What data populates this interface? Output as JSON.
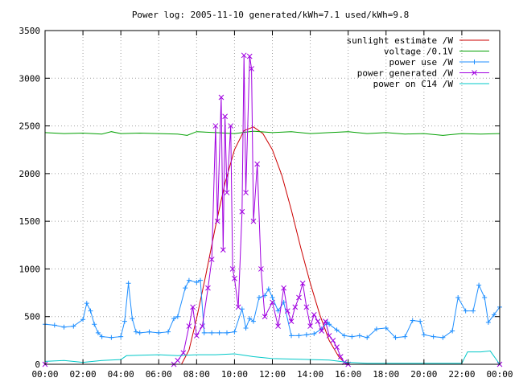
{
  "chart_data": {
    "type": "line",
    "title": "Power log: 2005-11-10 generated/kWh=7.1 used/kWh=9.8",
    "xlabel": "",
    "ylabel": "",
    "x_unit": "hours",
    "xlim": [
      0,
      24
    ],
    "ylim": [
      0,
      3500
    ],
    "x_ticks": [
      "00:00",
      "02:00",
      "04:00",
      "06:00",
      "08:00",
      "10:00",
      "12:00",
      "14:00",
      "16:00",
      "18:00",
      "20:00",
      "22:00",
      "00:00"
    ],
    "y_ticks": [
      "0",
      "500",
      "1000",
      "1500",
      "2000",
      "2500",
      "3000",
      "3500"
    ],
    "grid": true,
    "legend_position": "top-right",
    "series": [
      {
        "name": "sunlight estimate /W",
        "color": "#cc0000",
        "marker": "none",
        "points": [
          [
            7.2,
            0
          ],
          [
            7.6,
            150
          ],
          [
            8.0,
            480
          ],
          [
            8.5,
            950
          ],
          [
            9.0,
            1450
          ],
          [
            9.5,
            1900
          ],
          [
            10.0,
            2250
          ],
          [
            10.5,
            2450
          ],
          [
            11.0,
            2490
          ],
          [
            11.5,
            2420
          ],
          [
            12.0,
            2250
          ],
          [
            12.5,
            1980
          ],
          [
            13.0,
            1620
          ],
          [
            13.5,
            1220
          ],
          [
            14.0,
            850
          ],
          [
            14.5,
            520
          ],
          [
            15.0,
            250
          ],
          [
            15.5,
            80
          ],
          [
            15.9,
            0
          ]
        ]
      },
      {
        "name": "voltage /0.1V",
        "color": "#00a000",
        "marker": "none",
        "points": [
          [
            0,
            2430
          ],
          [
            1,
            2420
          ],
          [
            2,
            2425
          ],
          [
            3,
            2415
          ],
          [
            3.5,
            2440
          ],
          [
            4,
            2420
          ],
          [
            5,
            2425
          ],
          [
            6,
            2420
          ],
          [
            7,
            2415
          ],
          [
            7.5,
            2400
          ],
          [
            8,
            2440
          ],
          [
            9,
            2430
          ],
          [
            10,
            2420
          ],
          [
            11,
            2445
          ],
          [
            12,
            2430
          ],
          [
            13,
            2440
          ],
          [
            14,
            2420
          ],
          [
            15,
            2430
          ],
          [
            16,
            2440
          ],
          [
            17,
            2420
          ],
          [
            18,
            2430
          ],
          [
            19,
            2415
          ],
          [
            20,
            2420
          ],
          [
            21,
            2400
          ],
          [
            22,
            2420
          ],
          [
            23,
            2415
          ],
          [
            24,
            2420
          ]
        ]
      },
      {
        "name": "power use /W",
        "color": "#1f8fff",
        "marker": "plus",
        "points": [
          [
            0,
            420
          ],
          [
            0.5,
            410
          ],
          [
            1,
            390
          ],
          [
            1.5,
            400
          ],
          [
            2,
            470
          ],
          [
            2.2,
            640
          ],
          [
            2.4,
            560
          ],
          [
            2.6,
            420
          ],
          [
            2.8,
            330
          ],
          [
            3,
            290
          ],
          [
            3.5,
            280
          ],
          [
            4,
            290
          ],
          [
            4.2,
            450
          ],
          [
            4.4,
            850
          ],
          [
            4.6,
            480
          ],
          [
            4.8,
            340
          ],
          [
            5,
            330
          ],
          [
            5.5,
            340
          ],
          [
            6,
            330
          ],
          [
            6.5,
            340
          ],
          [
            6.8,
            480
          ],
          [
            7,
            500
          ],
          [
            7.4,
            800
          ],
          [
            7.6,
            880
          ],
          [
            8,
            860
          ],
          [
            8.2,
            880
          ],
          [
            8.4,
            330
          ],
          [
            8.8,
            330
          ],
          [
            9.2,
            330
          ],
          [
            9.6,
            330
          ],
          [
            10,
            340
          ],
          [
            10.4,
            580
          ],
          [
            10.6,
            380
          ],
          [
            10.8,
            480
          ],
          [
            11,
            450
          ],
          [
            11.3,
            700
          ],
          [
            11.6,
            720
          ],
          [
            11.8,
            790
          ],
          [
            12,
            700
          ],
          [
            12.3,
            560
          ],
          [
            12.6,
            650
          ],
          [
            13,
            300
          ],
          [
            13.4,
            300
          ],
          [
            13.8,
            310
          ],
          [
            14.2,
            320
          ],
          [
            14.6,
            370
          ],
          [
            14.9,
            440
          ],
          [
            15,
            420
          ],
          [
            15.4,
            360
          ],
          [
            15.8,
            300
          ],
          [
            16.2,
            290
          ],
          [
            16.6,
            300
          ],
          [
            17,
            280
          ],
          [
            17.5,
            370
          ],
          [
            18,
            380
          ],
          [
            18.5,
            280
          ],
          [
            19,
            290
          ],
          [
            19.4,
            460
          ],
          [
            19.8,
            450
          ],
          [
            20,
            310
          ],
          [
            20.5,
            290
          ],
          [
            21,
            280
          ],
          [
            21.5,
            350
          ],
          [
            21.8,
            700
          ],
          [
            22.2,
            560
          ],
          [
            22.6,
            560
          ],
          [
            22.9,
            830
          ],
          [
            23.2,
            700
          ],
          [
            23.4,
            440
          ],
          [
            23.7,
            520
          ],
          [
            24,
            600
          ]
        ]
      },
      {
        "name": "power generated /W",
        "color": "#a000e0",
        "marker": "cross",
        "points": [
          [
            0,
            0
          ],
          [
            6.8,
            0
          ],
          [
            7.0,
            40
          ],
          [
            7.3,
            120
          ],
          [
            7.6,
            400
          ],
          [
            7.8,
            600
          ],
          [
            8.0,
            300
          ],
          [
            8.3,
            400
          ],
          [
            8.6,
            800
          ],
          [
            8.8,
            1100
          ],
          [
            9.0,
            2500
          ],
          [
            9.1,
            1500
          ],
          [
            9.3,
            2800
          ],
          [
            9.4,
            1200
          ],
          [
            9.5,
            2600
          ],
          [
            9.6,
            1800
          ],
          [
            9.8,
            2500
          ],
          [
            9.9,
            1000
          ],
          [
            10.0,
            900
          ],
          [
            10.2,
            600
          ],
          [
            10.4,
            1600
          ],
          [
            10.5,
            3240
          ],
          [
            10.6,
            1800
          ],
          [
            10.8,
            3230
          ],
          [
            10.9,
            3100
          ],
          [
            11.0,
            1500
          ],
          [
            11.2,
            2100
          ],
          [
            11.4,
            1000
          ],
          [
            11.6,
            500
          ],
          [
            12.0,
            650
          ],
          [
            12.3,
            400
          ],
          [
            12.6,
            800
          ],
          [
            12.8,
            560
          ],
          [
            13.0,
            450
          ],
          [
            13.2,
            600
          ],
          [
            13.4,
            700
          ],
          [
            13.6,
            850
          ],
          [
            13.8,
            600
          ],
          [
            14.0,
            400
          ],
          [
            14.2,
            520
          ],
          [
            14.4,
            450
          ],
          [
            14.6,
            350
          ],
          [
            14.8,
            450
          ],
          [
            15.0,
            300
          ],
          [
            15.2,
            250
          ],
          [
            15.4,
            180
          ],
          [
            15.6,
            80
          ],
          [
            15.8,
            20
          ],
          [
            16.0,
            0
          ],
          [
            24,
            0
          ]
        ]
      },
      {
        "name": "power on C14 /W",
        "color": "#00c8c8",
        "marker": "none",
        "points": [
          [
            0,
            30
          ],
          [
            1,
            40
          ],
          [
            2,
            20
          ],
          [
            3,
            40
          ],
          [
            4,
            50
          ],
          [
            4.3,
            90
          ],
          [
            5,
            95
          ],
          [
            6,
            100
          ],
          [
            7,
            90
          ],
          [
            8,
            100
          ],
          [
            9,
            100
          ],
          [
            10,
            110
          ],
          [
            11,
            80
          ],
          [
            12,
            60
          ],
          [
            13,
            55
          ],
          [
            14,
            50
          ],
          [
            15,
            45
          ],
          [
            16,
            20
          ],
          [
            17,
            10
          ],
          [
            18,
            10
          ],
          [
            19,
            10
          ],
          [
            20,
            10
          ],
          [
            21,
            10
          ],
          [
            22,
            10
          ],
          [
            22.3,
            130
          ],
          [
            23,
            130
          ],
          [
            23.5,
            140
          ],
          [
            24,
            0
          ]
        ]
      }
    ]
  }
}
